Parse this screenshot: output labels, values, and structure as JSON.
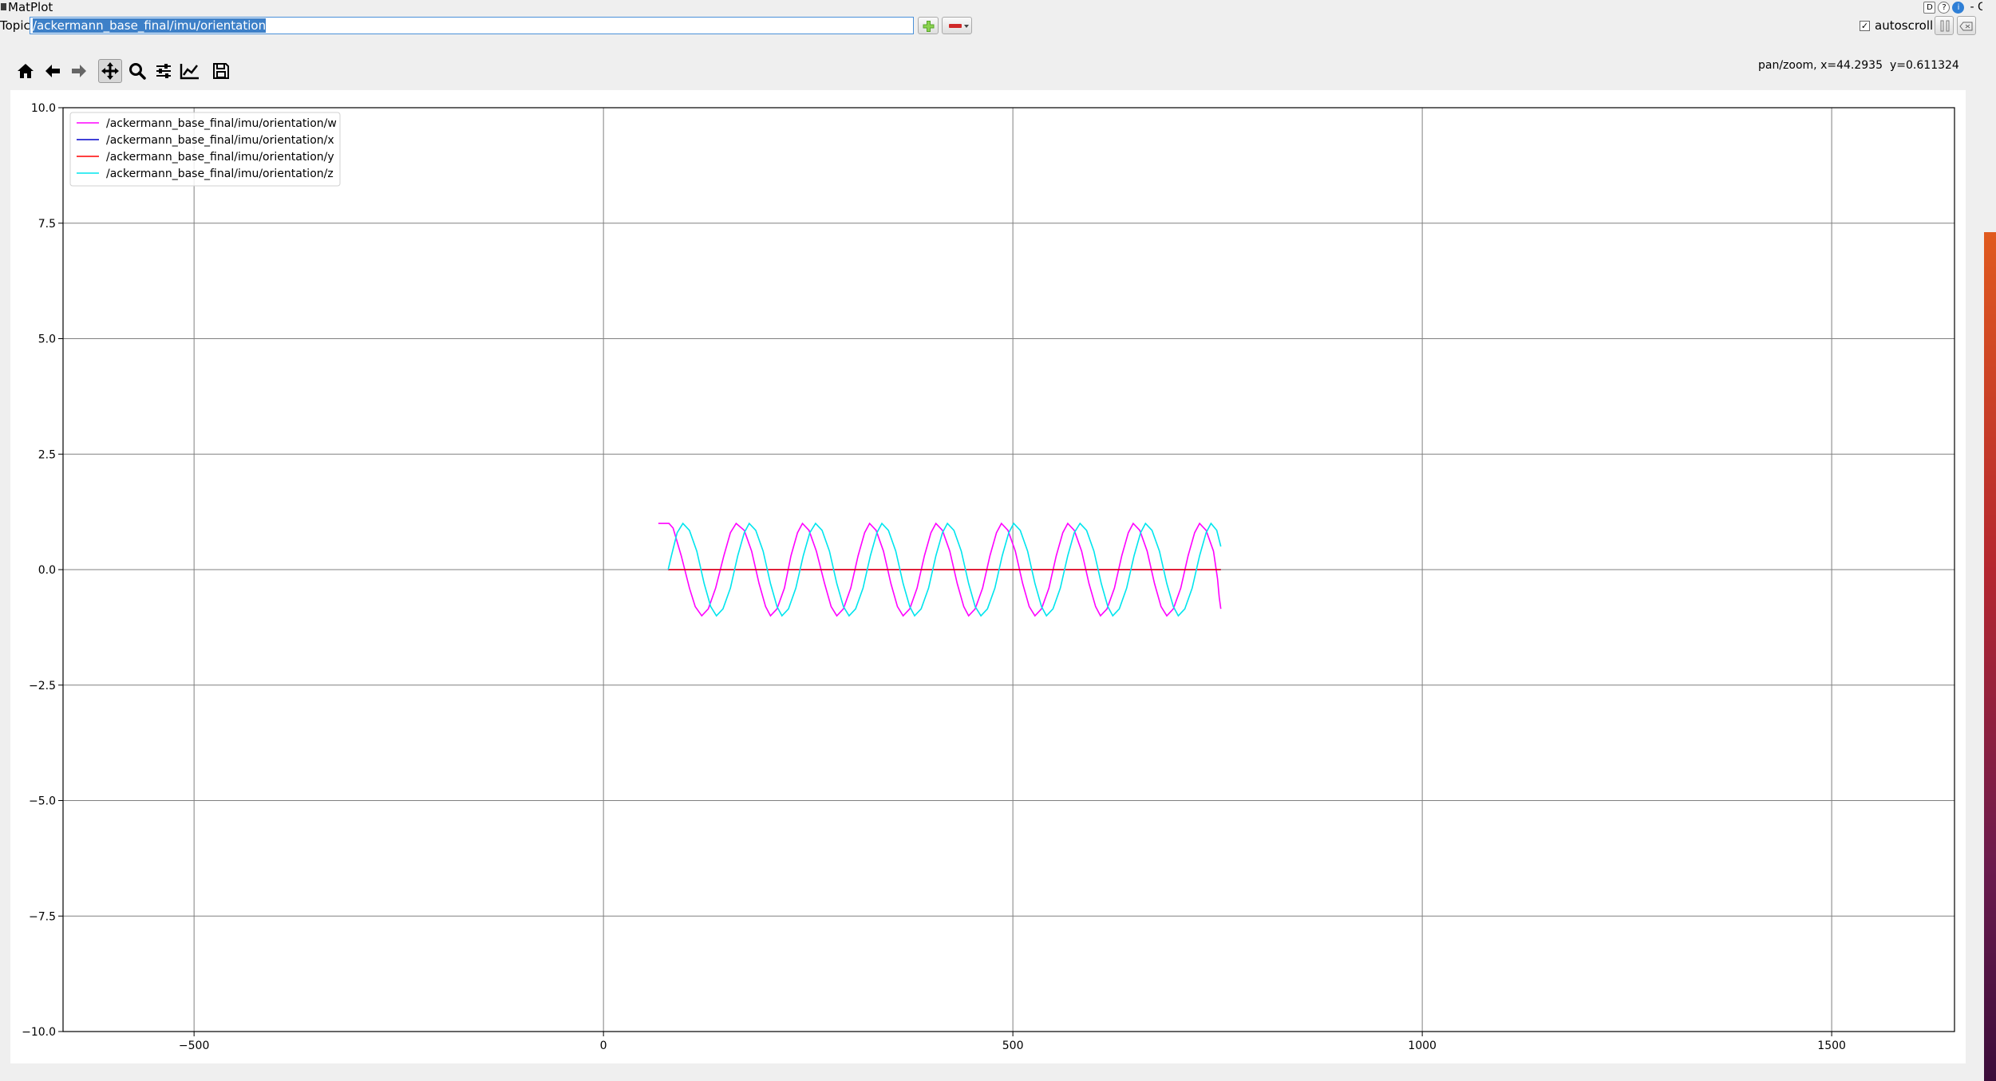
{
  "window": {
    "title": "MatPlot",
    "title_controls": [
      "D",
      "?",
      "i",
      "- O"
    ]
  },
  "topic": {
    "label": "Topic",
    "value": "/ackermann_base_final/imu/orientation"
  },
  "autoscroll": {
    "label": "autoscroll",
    "checked": true
  },
  "toolbar": {
    "icons": [
      "home-icon",
      "back-arrow-icon",
      "forward-arrow-icon",
      "pan-move-icon",
      "zoom-magnifier-icon",
      "configure-subplots-icon",
      "edit-axis-line-icon",
      "save-floppy-icon"
    ],
    "mode_text": "pan/zoom, x=44.2935",
    "y_text": "y=0.611324"
  },
  "chart_data": {
    "type": "line",
    "title": "",
    "xlabel": "",
    "ylabel": "",
    "xlim": [
      -660,
      1650
    ],
    "ylim": [
      -10,
      10
    ],
    "xticks": [
      -500,
      0,
      500,
      1000,
      1500
    ],
    "xtick_labels": [
      "−500",
      "0",
      "500",
      "1000",
      "1500"
    ],
    "yticks": [
      -10,
      -7.5,
      -5,
      -2.5,
      0,
      2.5,
      5,
      7.5,
      10
    ],
    "ytick_labels": [
      "−10.0",
      "−7.5",
      "−5.0",
      "−2.5",
      "0.0",
      "2.5",
      "5.0",
      "7.5",
      "10.0"
    ],
    "grid": true,
    "legend_position": "top-left",
    "series": [
      {
        "name": "/ackermann_base_final/imu/orientation/w",
        "color": "#ff00ff",
        "points": [
          [
            67,
            1.0
          ],
          [
            80,
            1.0
          ],
          [
            85,
            0.9
          ],
          [
            95,
            0.3
          ],
          [
            105,
            -0.4
          ],
          [
            112,
            -0.8
          ],
          [
            120,
            -1.0
          ],
          [
            128,
            -0.85
          ],
          [
            137,
            -0.4
          ],
          [
            147,
            0.3
          ],
          [
            155,
            0.8
          ],
          [
            162,
            1.0
          ],
          [
            172,
            0.85
          ],
          [
            181,
            0.4
          ],
          [
            190,
            -0.3
          ],
          [
            198,
            -0.8
          ],
          [
            204,
            -1.0
          ],
          [
            212,
            -0.85
          ],
          [
            221,
            -0.4
          ],
          [
            229,
            0.3
          ],
          [
            237,
            0.8
          ],
          [
            243,
            1.0
          ],
          [
            251,
            0.85
          ],
          [
            260,
            0.4
          ],
          [
            270,
            -0.3
          ],
          [
            278,
            -0.8
          ],
          [
            285,
            -1.0
          ],
          [
            293,
            -0.85
          ],
          [
            302,
            -0.4
          ],
          [
            311,
            0.3
          ],
          [
            319,
            0.8
          ],
          [
            325,
            1.0
          ],
          [
            333,
            0.85
          ],
          [
            342,
            0.4
          ],
          [
            351,
            -0.3
          ],
          [
            359,
            -0.8
          ],
          [
            366,
            -1.0
          ],
          [
            374,
            -0.85
          ],
          [
            383,
            -0.4
          ],
          [
            392,
            0.3
          ],
          [
            400,
            0.8
          ],
          [
            406,
            1.0
          ],
          [
            414,
            0.85
          ],
          [
            423,
            0.4
          ],
          [
            432,
            -0.3
          ],
          [
            440,
            -0.8
          ],
          [
            446,
            -1.0
          ],
          [
            454,
            -0.85
          ],
          [
            463,
            -0.4
          ],
          [
            472,
            0.3
          ],
          [
            480,
            0.8
          ],
          [
            486,
            1.0
          ],
          [
            494,
            0.85
          ],
          [
            503,
            0.4
          ],
          [
            512,
            -0.3
          ],
          [
            520,
            -0.8
          ],
          [
            527,
            -1.0
          ],
          [
            535,
            -0.85
          ],
          [
            544,
            -0.4
          ],
          [
            553,
            0.3
          ],
          [
            561,
            0.8
          ],
          [
            567,
            1.0
          ],
          [
            575,
            0.85
          ],
          [
            584,
            0.4
          ],
          [
            593,
            -0.3
          ],
          [
            601,
            -0.8
          ],
          [
            607,
            -1.0
          ],
          [
            615,
            -0.85
          ],
          [
            624,
            -0.4
          ],
          [
            633,
            0.3
          ],
          [
            641,
            0.8
          ],
          [
            647,
            1.0
          ],
          [
            655,
            0.85
          ],
          [
            664,
            0.4
          ],
          [
            673,
            -0.3
          ],
          [
            681,
            -0.8
          ],
          [
            688,
            -1.0
          ],
          [
            696,
            -0.85
          ],
          [
            705,
            -0.4
          ],
          [
            714,
            0.3
          ],
          [
            722,
            0.8
          ],
          [
            728,
            1.0
          ],
          [
            736,
            0.85
          ],
          [
            745,
            0.4
          ],
          [
            750,
            -0.2
          ],
          [
            752,
            -0.6
          ],
          [
            754,
            -0.85
          ]
        ]
      },
      {
        "name": "/ackermann_base_final/imu/orientation/x",
        "color": "#0000cc",
        "points": [
          [
            79,
            0.0
          ],
          [
            754,
            0.0
          ]
        ]
      },
      {
        "name": "/ackermann_base_final/imu/orientation/y",
        "color": "#ff0000",
        "points": [
          [
            79,
            0.0
          ],
          [
            754,
            0.0
          ]
        ]
      },
      {
        "name": "/ackermann_base_final/imu/orientation/z",
        "color": "#00e5ee",
        "points": [
          [
            79,
            0.0
          ],
          [
            83,
            0.3
          ],
          [
            90,
            0.8
          ],
          [
            97,
            1.0
          ],
          [
            105,
            0.85
          ],
          [
            114,
            0.4
          ],
          [
            123,
            -0.3
          ],
          [
            131,
            -0.8
          ],
          [
            138,
            -1.0
          ],
          [
            146,
            -0.85
          ],
          [
            155,
            -0.4
          ],
          [
            164,
            0.3
          ],
          [
            172,
            0.8
          ],
          [
            178,
            1.0
          ],
          [
            186,
            0.85
          ],
          [
            195,
            0.4
          ],
          [
            204,
            -0.3
          ],
          [
            212,
            -0.8
          ],
          [
            218,
            -1.0
          ],
          [
            226,
            -0.85
          ],
          [
            235,
            -0.4
          ],
          [
            244,
            0.3
          ],
          [
            252,
            0.8
          ],
          [
            259,
            1.0
          ],
          [
            267,
            0.85
          ],
          [
            276,
            0.4
          ],
          [
            285,
            -0.3
          ],
          [
            293,
            -0.8
          ],
          [
            300,
            -1.0
          ],
          [
            308,
            -0.85
          ],
          [
            317,
            -0.4
          ],
          [
            326,
            0.3
          ],
          [
            334,
            0.8
          ],
          [
            340,
            1.0
          ],
          [
            348,
            0.85
          ],
          [
            357,
            0.4
          ],
          [
            366,
            -0.3
          ],
          [
            374,
            -0.8
          ],
          [
            380,
            -1.0
          ],
          [
            388,
            -0.85
          ],
          [
            397,
            -0.4
          ],
          [
            406,
            0.3
          ],
          [
            414,
            0.8
          ],
          [
            420,
            1.0
          ],
          [
            428,
            0.85
          ],
          [
            437,
            0.4
          ],
          [
            446,
            -0.3
          ],
          [
            454,
            -0.8
          ],
          [
            461,
            -1.0
          ],
          [
            469,
            -0.85
          ],
          [
            478,
            -0.4
          ],
          [
            487,
            0.3
          ],
          [
            495,
            0.8
          ],
          [
            501,
            1.0
          ],
          [
            509,
            0.85
          ],
          [
            518,
            0.4
          ],
          [
            527,
            -0.3
          ],
          [
            535,
            -0.8
          ],
          [
            541,
            -1.0
          ],
          [
            549,
            -0.85
          ],
          [
            558,
            -0.4
          ],
          [
            567,
            0.3
          ],
          [
            575,
            0.8
          ],
          [
            582,
            1.0
          ],
          [
            590,
            0.85
          ],
          [
            599,
            0.4
          ],
          [
            608,
            -0.3
          ],
          [
            616,
            -0.8
          ],
          [
            622,
            -1.0
          ],
          [
            630,
            -0.85
          ],
          [
            639,
            -0.4
          ],
          [
            648,
            0.3
          ],
          [
            656,
            0.8
          ],
          [
            662,
            1.0
          ],
          [
            670,
            0.85
          ],
          [
            679,
            0.4
          ],
          [
            688,
            -0.3
          ],
          [
            696,
            -0.8
          ],
          [
            702,
            -1.0
          ],
          [
            710,
            -0.85
          ],
          [
            719,
            -0.4
          ],
          [
            728,
            0.3
          ],
          [
            736,
            0.8
          ],
          [
            742,
            1.0
          ],
          [
            749,
            0.85
          ],
          [
            754,
            0.5
          ]
        ]
      }
    ]
  }
}
